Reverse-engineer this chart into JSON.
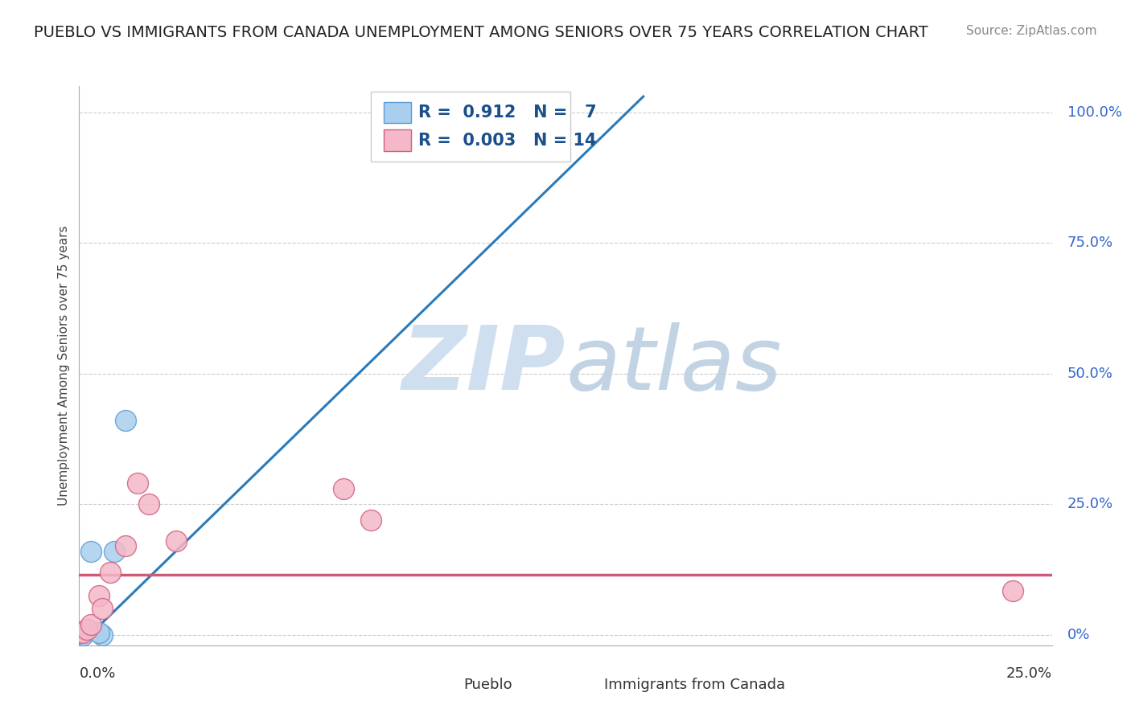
{
  "title": "PUEBLO VS IMMIGRANTS FROM CANADA UNEMPLOYMENT AMONG SENIORS OVER 75 YEARS CORRELATION CHART",
  "source": "Source: ZipAtlas.com",
  "ylabel": "Unemployment Among Seniors over 75 years",
  "xlim": [
    0.0,
    0.25
  ],
  "ylim": [
    -0.02,
    1.05
  ],
  "xaxis_ticks": [
    0.0,
    0.25
  ],
  "xaxis_labels": [
    "0.0%",
    "25.0%"
  ],
  "yaxis_ticks": [
    0.0,
    0.25,
    0.5,
    0.75,
    1.0
  ],
  "yaxis_labels": [
    "0%",
    "25.0%",
    "50.0%",
    "75.0%",
    "100.0%"
  ],
  "pueblo_color": "#aacfee",
  "pueblo_edge_color": "#5b9bd5",
  "canada_color": "#f4b8c8",
  "canada_edge_color": "#d06080",
  "pueblo_line_color": "#2b7bba",
  "canada_line_color": "#d05878",
  "pueblo_R": "0.912",
  "pueblo_N": "7",
  "canada_R": "0.003",
  "canada_N": "14",
  "pueblo_points_x": [
    0.001,
    0.003,
    0.006,
    0.009,
    0.012,
    0.12,
    0.005
  ],
  "pueblo_points_y": [
    0.0,
    0.16,
    0.0,
    0.16,
    0.41,
    0.97,
    0.005
  ],
  "canada_points_x": [
    0.0,
    0.001,
    0.002,
    0.003,
    0.005,
    0.006,
    0.008,
    0.012,
    0.015,
    0.018,
    0.025,
    0.068,
    0.075,
    0.24
  ],
  "canada_points_y": [
    0.005,
    0.005,
    0.01,
    0.02,
    0.075,
    0.05,
    0.12,
    0.17,
    0.29,
    0.25,
    0.18,
    0.28,
    0.22,
    0.085
  ],
  "pueblo_trend_x": [
    0.0,
    0.145
  ],
  "pueblo_trend_y": [
    -0.02,
    1.03
  ],
  "canada_trend_y": 0.115,
  "watermark_zip": "ZIP",
  "watermark_atlas": "atlas",
  "watermark_color": "#d0dff0",
  "background_color": "#ffffff",
  "grid_color": "#cccccc",
  "title_fontsize": 14,
  "source_fontsize": 11,
  "legend_fontsize": 15,
  "ylabel_fontsize": 11,
  "tick_fontsize": 13
}
